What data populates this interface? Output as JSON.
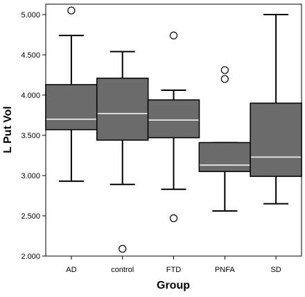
{
  "chart_data": {
    "type": "boxplot",
    "xlabel": "Group",
    "ylabel": "L Put Vol",
    "ylim": [
      2.0,
      5.0
    ],
    "yticks": [
      2.0,
      2.5,
      3.0,
      3.5,
      4.0,
      4.5,
      5.0
    ],
    "ytick_labels": [
      "2.000",
      "2.500",
      "3.000",
      "3.500",
      "4.000",
      "4.500",
      "5.000"
    ],
    "grid": false,
    "box_color": "#6b6b6b",
    "median_color": "#ffffff",
    "categories": [
      "AD",
      "control",
      "FTD",
      "PNFA",
      "SD"
    ],
    "boxes": [
      {
        "category": "AD",
        "whisker_low": 2.93,
        "q1": 3.57,
        "median": 3.7,
        "q3": 4.13,
        "whisker_high": 4.74,
        "outliers": [
          5.05
        ]
      },
      {
        "category": "control",
        "whisker_low": 2.89,
        "q1": 3.44,
        "median": 3.77,
        "q3": 4.21,
        "whisker_high": 4.54,
        "outliers": [
          2.09
        ]
      },
      {
        "category": "FTD",
        "whisker_low": 2.83,
        "q1": 3.47,
        "median": 3.69,
        "q3": 3.94,
        "whisker_high": 4.06,
        "outliers": [
          4.74,
          2.47
        ]
      },
      {
        "category": "PNFA",
        "whisker_low": 2.56,
        "q1": 3.05,
        "median": 3.13,
        "q3": 3.41,
        "whisker_high": 3.41,
        "outliers": [
          4.31,
          4.2
        ]
      },
      {
        "category": "SD",
        "whisker_low": 2.65,
        "q1": 2.99,
        "median": 3.23,
        "q3": 3.9,
        "whisker_high": 5.0,
        "outliers": []
      }
    ]
  }
}
